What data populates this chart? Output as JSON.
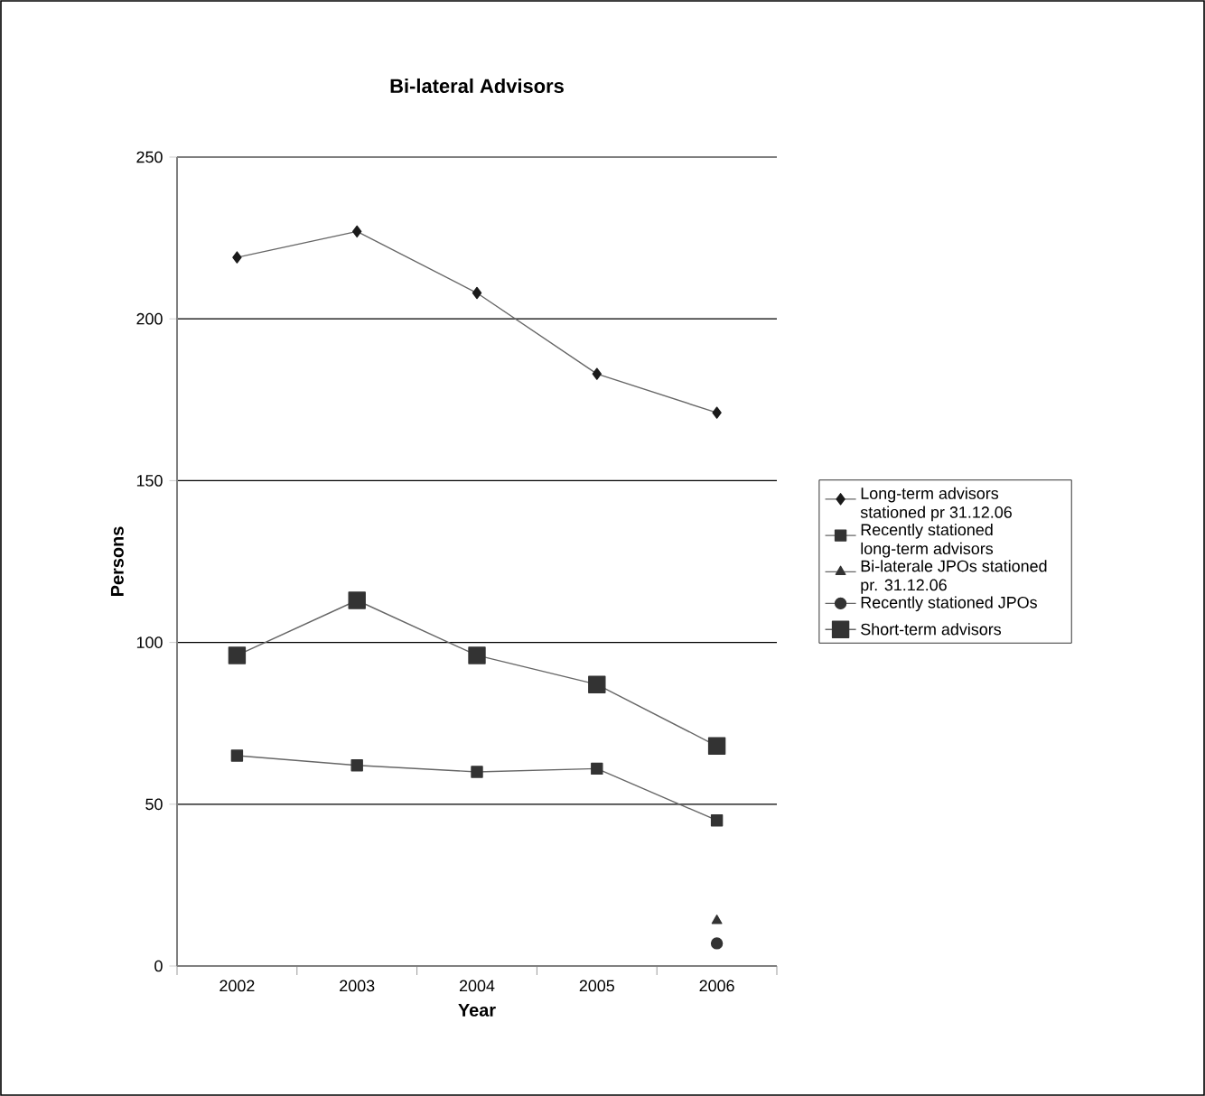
{
  "chart_data": {
    "type": "line",
    "title": "Bi-lateral Advisors",
    "xlabel": "Year",
    "ylabel": "Persons",
    "categories": [
      "2002",
      "2003",
      "2004",
      "2005",
      "2006"
    ],
    "ylim": [
      0,
      250
    ],
    "yticks": [
      0,
      50,
      100,
      150,
      200,
      250
    ],
    "grid": "y",
    "legend": "right",
    "series": [
      {
        "name": "Long-term advisors stationed pr 31.12.06",
        "color": "#1a1a1a",
        "marker": "diamond",
        "values": [
          219,
          227,
          208,
          183,
          171
        ]
      },
      {
        "name": "Recently stationed long-term advisors",
        "color": "#333333",
        "marker": "square",
        "values": [
          65,
          62,
          60,
          61,
          45
        ]
      },
      {
        "name": "Bi-laterale JPOs stationed pr. 31.12.06",
        "color": "#333333",
        "marker": "triangle",
        "values": [
          null,
          null,
          null,
          null,
          14
        ]
      },
      {
        "name": "Recently stationed JPOs",
        "color": "#333333",
        "marker": "circle",
        "values": [
          null,
          null,
          null,
          null,
          7
        ]
      },
      {
        "name": "Short-term advisors",
        "color": "#333333",
        "marker": "square",
        "values": [
          96,
          113,
          96,
          87,
          68
        ]
      }
    ]
  }
}
